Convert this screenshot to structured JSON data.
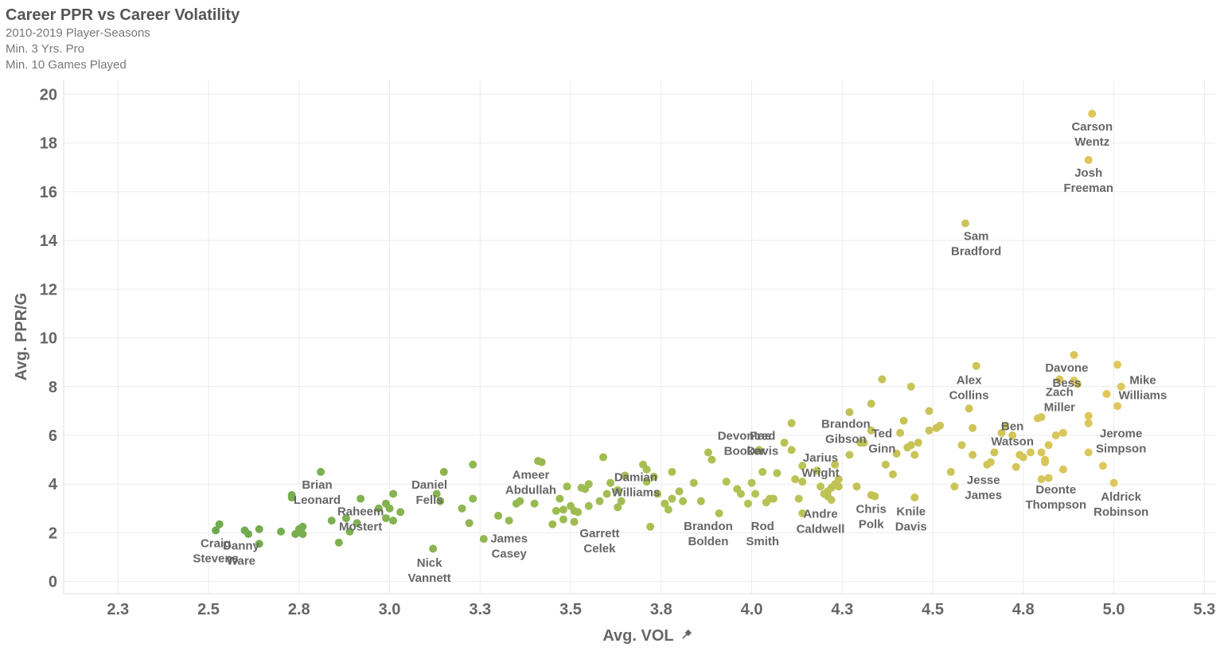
{
  "header": {
    "title": "Career PPR vs Career Volatility",
    "subtitles": [
      "2010-2019 Player-Seasons",
      "Min. 3 Yrs. Pro",
      "Min. 10 Games Played"
    ]
  },
  "colors": {
    "low": "#6aa84f",
    "mid": "#a8c052",
    "high": "#e0c75a",
    "grid": "#ececec",
    "axis": "#dddddd",
    "text": "#666666"
  },
  "pin_icon": "pin-icon",
  "chart_data": {
    "type": "scatter",
    "xlabel": "Avg. VOL",
    "ylabel": "Avg. PPR/G",
    "xlim": [
      2.15,
      5.33
    ],
    "ylim": [
      -0.5,
      20.6
    ],
    "x_ticks": [
      {
        "v": 2.3,
        "label": "2.3"
      },
      {
        "v": 2.55,
        "label": "2.5"
      },
      {
        "v": 2.8,
        "label": "2.8"
      },
      {
        "v": 3.05,
        "label": "3.0"
      },
      {
        "v": 3.3,
        "label": "3.3"
      },
      {
        "v": 3.55,
        "label": "3.5"
      },
      {
        "v": 3.8,
        "label": "3.8"
      },
      {
        "v": 4.05,
        "label": "4.0"
      },
      {
        "v": 4.3,
        "label": "4.3"
      },
      {
        "v": 4.55,
        "label": "4.5"
      },
      {
        "v": 4.8,
        "label": "4.8"
      },
      {
        "v": 5.05,
        "label": "5.0"
      },
      {
        "v": 5.3,
        "label": "5.3"
      }
    ],
    "y_ticks": [
      {
        "v": 0,
        "label": "0"
      },
      {
        "v": 2,
        "label": "2"
      },
      {
        "v": 4,
        "label": "4"
      },
      {
        "v": 6,
        "label": "6"
      },
      {
        "v": 8,
        "label": "8"
      },
      {
        "v": 10,
        "label": "10"
      },
      {
        "v": 12,
        "label": "12"
      },
      {
        "v": 14,
        "label": "14"
      },
      {
        "v": 16,
        "label": "16"
      },
      {
        "v": 18,
        "label": "18"
      },
      {
        "v": 20,
        "label": "20"
      }
    ],
    "color_range": [
      2.5,
      5.05
    ],
    "labels": [
      {
        "name": "Craig Stevens",
        "lines": [
          "Craig",
          "Stevens"
        ],
        "x": 2.57,
        "y": 2.1
      },
      {
        "name": "Danny Ware",
        "lines": [
          "Danny",
          "Ware"
        ],
        "x": 2.64,
        "y": 2.0
      },
      {
        "name": "Brian Leonard",
        "lines": [
          "Brian",
          "Leonard"
        ],
        "x": 2.85,
        "y": 4.5
      },
      {
        "name": "Raheem Mostert",
        "lines": [
          "Raheem",
          "Mostert"
        ],
        "x": 2.97,
        "y": 3.4
      },
      {
        "name": "Daniel Fells",
        "lines": [
          "Daniel",
          "Fells"
        ],
        "x": 3.16,
        "y": 4.5
      },
      {
        "name": "Nick Vannett",
        "lines": [
          "Nick",
          "Vannett"
        ],
        "x": 3.16,
        "y": 1.3
      },
      {
        "name": "Ameer Abdullah",
        "lines": [
          "Ameer",
          "Abdullah"
        ],
        "x": 3.44,
        "y": 4.9
      },
      {
        "name": "James Casey",
        "lines": [
          "James",
          "Casey"
        ],
        "x": 3.38,
        "y": 2.3
      },
      {
        "name": "Garrett Celek",
        "lines": [
          "Garrett",
          "Celek"
        ],
        "x": 3.63,
        "y": 2.5
      },
      {
        "name": "Damian Williams",
        "lines": [
          "Damian",
          "Williams"
        ],
        "x": 3.73,
        "y": 4.8
      },
      {
        "name": "Brandon Bolden",
        "lines": [
          "Brandon",
          "Bolden"
        ],
        "x": 3.93,
        "y": 2.8
      },
      {
        "name": "Devontae Booker",
        "lines": [
          "Devontae",
          "Booker"
        ],
        "x": 4.03,
        "y": 6.5
      },
      {
        "name": "Fred Davis",
        "lines": [
          "Fred",
          "Davis"
        ],
        "x": 4.08,
        "y": 6.5
      },
      {
        "name": "Rod Smith",
        "lines": [
          "Rod",
          "Smith"
        ],
        "x": 4.08,
        "y": 2.8
      },
      {
        "name": "Jarius Wright",
        "lines": [
          "Jarius",
          "Wright"
        ],
        "x": 4.24,
        "y": 5.6
      },
      {
        "name": "Andre Caldwell",
        "lines": [
          "Andre",
          "Caldwell"
        ],
        "x": 4.24,
        "y": 3.3
      },
      {
        "name": "Brandon Gibson",
        "lines": [
          "Brandon",
          "Gibson"
        ],
        "x": 4.31,
        "y": 7.0
      },
      {
        "name": "Ted Ginn",
        "lines": [
          "Ted",
          "Ginn"
        ],
        "x": 4.41,
        "y": 6.6
      },
      {
        "name": "Chris Polk",
        "lines": [
          "Chris",
          "Polk"
        ],
        "x": 4.38,
        "y": 3.5
      },
      {
        "name": "Knile Davis",
        "lines": [
          "Knile",
          "Davis"
        ],
        "x": 4.49,
        "y": 3.4
      },
      {
        "name": "Alex Collins",
        "lines": [
          "Alex",
          "Collins"
        ],
        "x": 4.65,
        "y": 8.8
      },
      {
        "name": "Sam Bradford",
        "lines": [
          "Sam",
          "Bradford"
        ],
        "x": 4.67,
        "y": 14.7
      },
      {
        "name": "Carson Wentz",
        "lines": [
          "Carson",
          "Wentz"
        ],
        "x": 4.99,
        "y": 19.2
      },
      {
        "name": "Josh Freeman",
        "lines": [
          "Josh",
          "Freeman"
        ],
        "x": 4.98,
        "y": 17.3
      },
      {
        "name": "Ben Watson",
        "lines": [
          "Ben",
          "Watson"
        ],
        "x": 4.77,
        "y": 6.9
      },
      {
        "name": "Jesse James",
        "lines": [
          "Jesse",
          "James"
        ],
        "x": 4.69,
        "y": 4.7
      },
      {
        "name": "Davone Bess",
        "lines": [
          "Davone",
          "Bess"
        ],
        "x": 4.92,
        "y": 9.3
      },
      {
        "name": "Zach Miller",
        "lines": [
          "Zach",
          "Miller"
        ],
        "x": 4.9,
        "y": 8.3
      },
      {
        "name": "Deonte Thompson",
        "lines": [
          "Deonte",
          "Thompson"
        ],
        "x": 4.89,
        "y": 4.3
      },
      {
        "name": "Mike Williams",
        "lines": [
          "Mike",
          "Williams"
        ],
        "x": 5.13,
        "y": 8.8
      },
      {
        "name": "Jerome Simpson",
        "lines": [
          "Jerome",
          "Simpson"
        ],
        "x": 5.07,
        "y": 6.6
      },
      {
        "name": "Aldrick Robinson",
        "lines": [
          "Aldrick",
          "Robinson"
        ],
        "x": 5.07,
        "y": 4.0
      }
    ],
    "points": [
      [
        2.57,
        2.1
      ],
      [
        2.58,
        2.35
      ],
      [
        2.65,
        2.1
      ],
      [
        2.66,
        1.95
      ],
      [
        2.69,
        1.55
      ],
      [
        2.69,
        2.15
      ],
      [
        2.75,
        2.05
      ],
      [
        2.78,
        3.45
      ],
      [
        2.78,
        3.55
      ],
      [
        2.79,
        1.95
      ],
      [
        2.8,
        2.15
      ],
      [
        2.81,
        2.25
      ],
      [
        2.81,
        1.95
      ],
      [
        2.86,
        4.5
      ],
      [
        2.89,
        2.5
      ],
      [
        2.91,
        1.6
      ],
      [
        2.93,
        2.6
      ],
      [
        2.94,
        2.05
      ],
      [
        2.96,
        2.4
      ],
      [
        2.97,
        3.4
      ],
      [
        3.02,
        3.0
      ],
      [
        3.04,
        3.2
      ],
      [
        3.04,
        2.6
      ],
      [
        3.05,
        3.0
      ],
      [
        3.06,
        3.6
      ],
      [
        3.06,
        2.5
      ],
      [
        3.08,
        2.85
      ],
      [
        3.17,
        1.35
      ],
      [
        3.18,
        3.6
      ],
      [
        3.19,
        3.3
      ],
      [
        3.2,
        4.5
      ],
      [
        3.25,
        3.0
      ],
      [
        3.27,
        2.4
      ],
      [
        3.28,
        3.4
      ],
      [
        3.28,
        4.8
      ],
      [
        3.31,
        1.75
      ],
      [
        3.35,
        2.7
      ],
      [
        3.38,
        2.5
      ],
      [
        3.4,
        3.2
      ],
      [
        3.41,
        3.3
      ],
      [
        3.45,
        3.2
      ],
      [
        3.46,
        4.95
      ],
      [
        3.47,
        4.9
      ],
      [
        3.5,
        2.35
      ],
      [
        3.51,
        2.9
      ],
      [
        3.52,
        3.4
      ],
      [
        3.53,
        2.55
      ],
      [
        3.53,
        2.95
      ],
      [
        3.54,
        3.9
      ],
      [
        3.55,
        3.1
      ],
      [
        3.56,
        2.9
      ],
      [
        3.56,
        2.45
      ],
      [
        3.57,
        2.85
      ],
      [
        3.58,
        3.85
      ],
      [
        3.59,
        3.8
      ],
      [
        3.6,
        4.0
      ],
      [
        3.6,
        3.1
      ],
      [
        3.63,
        3.3
      ],
      [
        3.64,
        5.1
      ],
      [
        3.65,
        3.6
      ],
      [
        3.66,
        4.05
      ],
      [
        3.68,
        3.75
      ],
      [
        3.68,
        3.05
      ],
      [
        3.69,
        3.3
      ],
      [
        3.7,
        4.35
      ],
      [
        3.75,
        4.8
      ],
      [
        3.76,
        4.1
      ],
      [
        3.76,
        4.6
      ],
      [
        3.77,
        2.25
      ],
      [
        3.78,
        4.3
      ],
      [
        3.79,
        3.6
      ],
      [
        3.81,
        3.2
      ],
      [
        3.82,
        2.95
      ],
      [
        3.83,
        4.5
      ],
      [
        3.83,
        3.4
      ],
      [
        3.85,
        3.7
      ],
      [
        3.86,
        3.3
      ],
      [
        3.89,
        4.05
      ],
      [
        3.91,
        3.3
      ],
      [
        3.93,
        5.3
      ],
      [
        3.94,
        5.0
      ],
      [
        3.96,
        2.8
      ],
      [
        3.98,
        4.1
      ],
      [
        4.01,
        3.8
      ],
      [
        4.02,
        3.6
      ],
      [
        4.04,
        3.2
      ],
      [
        4.05,
        4.05
      ],
      [
        4.06,
        3.6
      ],
      [
        4.07,
        5.4
      ],
      [
        4.08,
        4.5
      ],
      [
        4.09,
        3.25
      ],
      [
        4.1,
        3.4
      ],
      [
        4.11,
        3.4
      ],
      [
        4.12,
        4.45
      ],
      [
        4.14,
        5.7
      ],
      [
        4.16,
        6.5
      ],
      [
        4.16,
        5.4
      ],
      [
        4.17,
        4.2
      ],
      [
        4.18,
        3.4
      ],
      [
        4.19,
        4.75
      ],
      [
        4.19,
        4.1
      ],
      [
        4.19,
        2.8
      ],
      [
        4.23,
        4.55
      ],
      [
        4.24,
        3.9
      ],
      [
        4.25,
        3.6
      ],
      [
        4.26,
        3.7
      ],
      [
        4.26,
        3.5
      ],
      [
        4.27,
        3.35
      ],
      [
        4.27,
        3.85
      ],
      [
        4.28,
        4.8
      ],
      [
        4.28,
        4.0
      ],
      [
        4.29,
        3.9
      ],
      [
        4.29,
        4.2
      ],
      [
        4.32,
        5.2
      ],
      [
        4.32,
        6.95
      ],
      [
        4.34,
        3.9
      ],
      [
        4.35,
        5.7
      ],
      [
        4.36,
        5.7
      ],
      [
        4.38,
        6.2
      ],
      [
        4.38,
        7.3
      ],
      [
        4.38,
        3.55
      ],
      [
        4.39,
        3.5
      ],
      [
        4.41,
        8.3
      ],
      [
        4.42,
        4.8
      ],
      [
        4.44,
        4.4
      ],
      [
        4.45,
        5.25
      ],
      [
        4.46,
        6.1
      ],
      [
        4.47,
        6.6
      ],
      [
        4.48,
        5.5
      ],
      [
        4.49,
        5.6
      ],
      [
        4.49,
        8.0
      ],
      [
        4.5,
        5.2
      ],
      [
        4.5,
        3.45
      ],
      [
        4.51,
        5.7
      ],
      [
        4.54,
        6.2
      ],
      [
        4.54,
        7.0
      ],
      [
        4.56,
        6.3
      ],
      [
        4.57,
        6.4
      ],
      [
        4.6,
        4.5
      ],
      [
        4.61,
        3.9
      ],
      [
        4.63,
        5.6
      ],
      [
        4.65,
        7.1
      ],
      [
        4.66,
        6.3
      ],
      [
        4.66,
        5.2
      ],
      [
        4.67,
        8.85
      ],
      [
        4.7,
        4.8
      ],
      [
        4.71,
        4.9
      ],
      [
        4.72,
        5.3
      ],
      [
        4.74,
        6.1
      ],
      [
        4.75,
        6.4
      ],
      [
        4.77,
        6.0
      ],
      [
        4.78,
        4.7
      ],
      [
        4.79,
        5.2
      ],
      [
        4.8,
        5.1
      ],
      [
        4.82,
        5.3
      ],
      [
        4.84,
        6.7
      ],
      [
        4.85,
        6.75
      ],
      [
        4.85,
        5.3
      ],
      [
        4.85,
        4.2
      ],
      [
        4.86,
        5.0
      ],
      [
        4.86,
        4.9
      ],
      [
        4.87,
        5.6
      ],
      [
        4.87,
        4.25
      ],
      [
        4.89,
        6.0
      ],
      [
        4.9,
        8.3
      ],
      [
        4.91,
        4.6
      ],
      [
        4.91,
        6.1
      ],
      [
        4.94,
        9.3
      ],
      [
        4.94,
        8.25
      ],
      [
        4.95,
        8.1
      ],
      [
        4.98,
        6.8
      ],
      [
        4.98,
        6.5
      ],
      [
        4.98,
        5.3
      ],
      [
        4.98,
        17.3
      ],
      [
        4.99,
        19.2
      ],
      [
        5.02,
        4.75
      ],
      [
        5.03,
        7.7
      ],
      [
        5.05,
        4.05
      ],
      [
        5.06,
        7.2
      ],
      [
        5.06,
        8.9
      ],
      [
        5.07,
        8.0
      ],
      [
        4.64,
        14.7
      ]
    ]
  }
}
